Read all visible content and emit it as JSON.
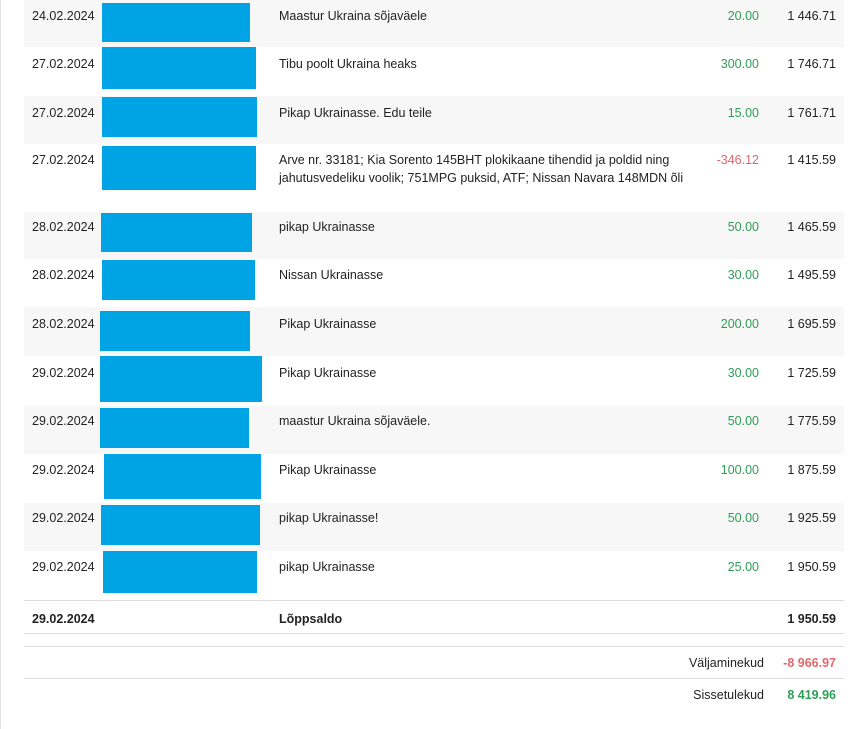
{
  "transactions": [
    {
      "date": "24.02.2024",
      "description": "Maastur Ukraina sõjaväele",
      "amount": "20.00",
      "balance": "1 446.71"
    },
    {
      "date": "27.02.2024",
      "description": "Tibu poolt Ukraina heaks",
      "amount": "300.00",
      "balance": "1 746.71"
    },
    {
      "date": "27.02.2024",
      "description": "Pikap Ukrainasse. Edu teile",
      "amount": "15.00",
      "balance": "1 761.71"
    },
    {
      "date": "27.02.2024",
      "description": "Arve nr. 33181; Kia Sorento 145BHT plokikaane tihendid ja poldid ning jahutusvedeliku voolik; 751MPG puksid, ATF; Nissan Navara 148MDN õli",
      "amount": "-346.12",
      "balance": "1 415.59"
    },
    {
      "date": "28.02.2024",
      "description": "pikap Ukrainasse",
      "amount": "50.00",
      "balance": "1 465.59"
    },
    {
      "date": "28.02.2024",
      "description": "Nissan Ukrainasse",
      "amount": "30.00",
      "balance": "1 495.59"
    },
    {
      "date": "28.02.2024",
      "description": "Pikap Ukrainasse",
      "amount": "200.00",
      "balance": "1 695.59"
    },
    {
      "date": "29.02.2024",
      "description": "Pikap Ukrainasse",
      "amount": "30.00",
      "balance": "1 725.59"
    },
    {
      "date": "29.02.2024",
      "description": "maastur Ukraina sõjaväele.",
      "amount": "50.00",
      "balance": "1 775.59"
    },
    {
      "date": "29.02.2024",
      "description": "Pikap Ukrainasse",
      "amount": "100.00",
      "balance": "1 875.59"
    },
    {
      "date": "29.02.2024",
      "description": "pikap Ukrainasse!",
      "amount": "50.00",
      "balance": "1 925.59"
    },
    {
      "date": "29.02.2024",
      "description": "pikap Ukrainasse",
      "amount": "25.00",
      "balance": "1 950.59"
    }
  ],
  "closing": {
    "date": "29.02.2024",
    "label": "Lõppsaldo",
    "balance": "1 950.59"
  },
  "summary": {
    "outgoing_label": "Väljaminekud",
    "outgoing_value": "-8 966.97",
    "incoming_label": "Sissetulekud",
    "incoming_value": "8 419.96"
  },
  "colors": {
    "positive": "#2e9e57",
    "negative": "#e0686c",
    "redaction": "#00a4e4",
    "alt_row": "#f7f7f7"
  }
}
